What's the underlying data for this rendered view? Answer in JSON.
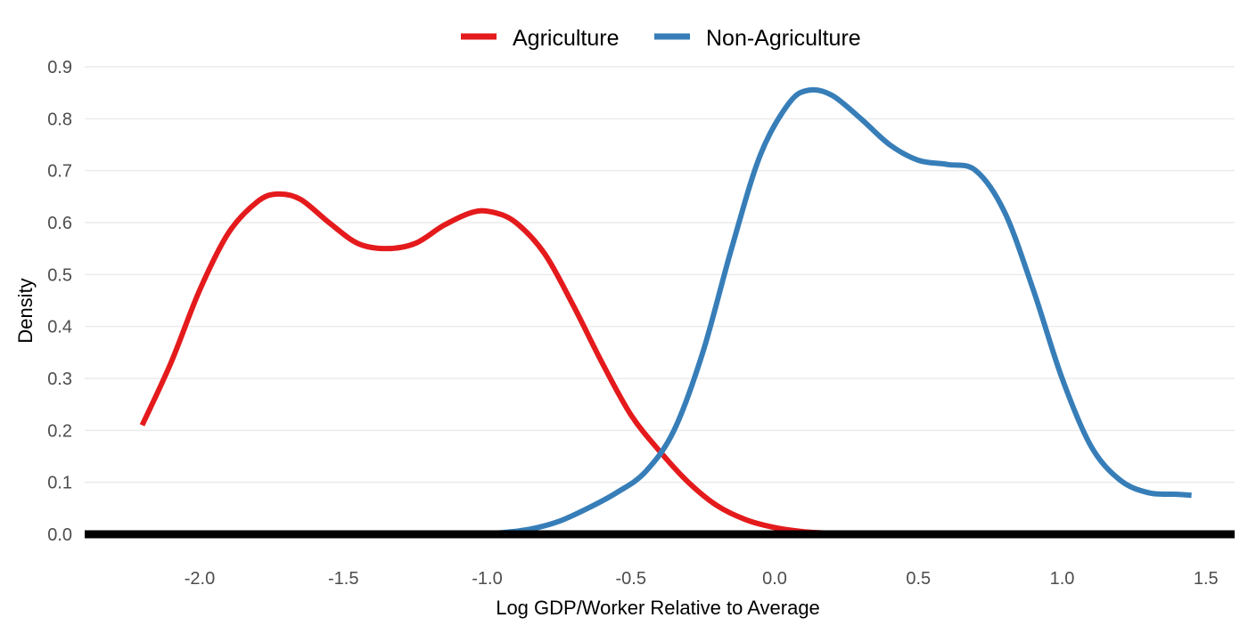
{
  "chart_data": {
    "type": "line",
    "title": "",
    "xlabel": "Log GDP/Worker Relative to Average",
    "ylabel": "Density",
    "xlim": [
      -2.4,
      1.6
    ],
    "ylim": [
      0,
      0.9
    ],
    "x_ticks": [
      -2.0,
      -1.5,
      -1.0,
      -0.5,
      0.0,
      0.5,
      1.0,
      1.5
    ],
    "x_tick_labels": [
      "-2.0",
      "-1.5",
      "-1.0",
      "-0.5",
      "0.0",
      "0.5",
      "1.0",
      "1.5"
    ],
    "y_ticks": [
      0,
      0.1,
      0.2,
      0.3,
      0.4,
      0.5,
      0.6,
      0.7,
      0.8,
      0.9
    ],
    "y_tick_labels": [
      "0.0",
      "0.1",
      "0.2",
      "0.3",
      "0.4",
      "0.5",
      "0.6",
      "0.7",
      "0.8",
      "0.9"
    ],
    "grid": "horizontal",
    "legend": {
      "position": "top"
    },
    "baseline": 0,
    "series": [
      {
        "name": "Agriculture",
        "color": "#e41a1c",
        "points": [
          [
            -2.2,
            0.21
          ],
          [
            -2.1,
            0.33
          ],
          [
            -2.0,
            0.47
          ],
          [
            -1.9,
            0.58
          ],
          [
            -1.8,
            0.64
          ],
          [
            -1.73,
            0.655
          ],
          [
            -1.65,
            0.645
          ],
          [
            -1.55,
            0.6
          ],
          [
            -1.45,
            0.56
          ],
          [
            -1.35,
            0.55
          ],
          [
            -1.25,
            0.56
          ],
          [
            -1.15,
            0.595
          ],
          [
            -1.05,
            0.62
          ],
          [
            -0.98,
            0.62
          ],
          [
            -0.9,
            0.6
          ],
          [
            -0.8,
            0.54
          ],
          [
            -0.7,
            0.44
          ],
          [
            -0.6,
            0.33
          ],
          [
            -0.5,
            0.23
          ],
          [
            -0.4,
            0.16
          ],
          [
            -0.3,
            0.1
          ],
          [
            -0.2,
            0.055
          ],
          [
            -0.1,
            0.028
          ],
          [
            0.0,
            0.013
          ],
          [
            0.1,
            0.005
          ],
          [
            0.2,
            0.002
          ],
          [
            0.28,
            0.001
          ]
        ]
      },
      {
        "name": "Non-Agriculture",
        "color": "#377eb8",
        "points": [
          [
            -1.05,
            0.0
          ],
          [
            -0.95,
            0.003
          ],
          [
            -0.85,
            0.01
          ],
          [
            -0.75,
            0.025
          ],
          [
            -0.65,
            0.05
          ],
          [
            -0.55,
            0.08
          ],
          [
            -0.45,
            0.12
          ],
          [
            -0.35,
            0.2
          ],
          [
            -0.25,
            0.35
          ],
          [
            -0.15,
            0.55
          ],
          [
            -0.05,
            0.73
          ],
          [
            0.05,
            0.83
          ],
          [
            0.12,
            0.855
          ],
          [
            0.2,
            0.845
          ],
          [
            0.3,
            0.8
          ],
          [
            0.4,
            0.75
          ],
          [
            0.5,
            0.72
          ],
          [
            0.6,
            0.712
          ],
          [
            0.7,
            0.7
          ],
          [
            0.8,
            0.62
          ],
          [
            0.9,
            0.47
          ],
          [
            1.0,
            0.3
          ],
          [
            1.1,
            0.17
          ],
          [
            1.2,
            0.105
          ],
          [
            1.3,
            0.08
          ],
          [
            1.4,
            0.077
          ],
          [
            1.45,
            0.075
          ]
        ]
      }
    ]
  }
}
